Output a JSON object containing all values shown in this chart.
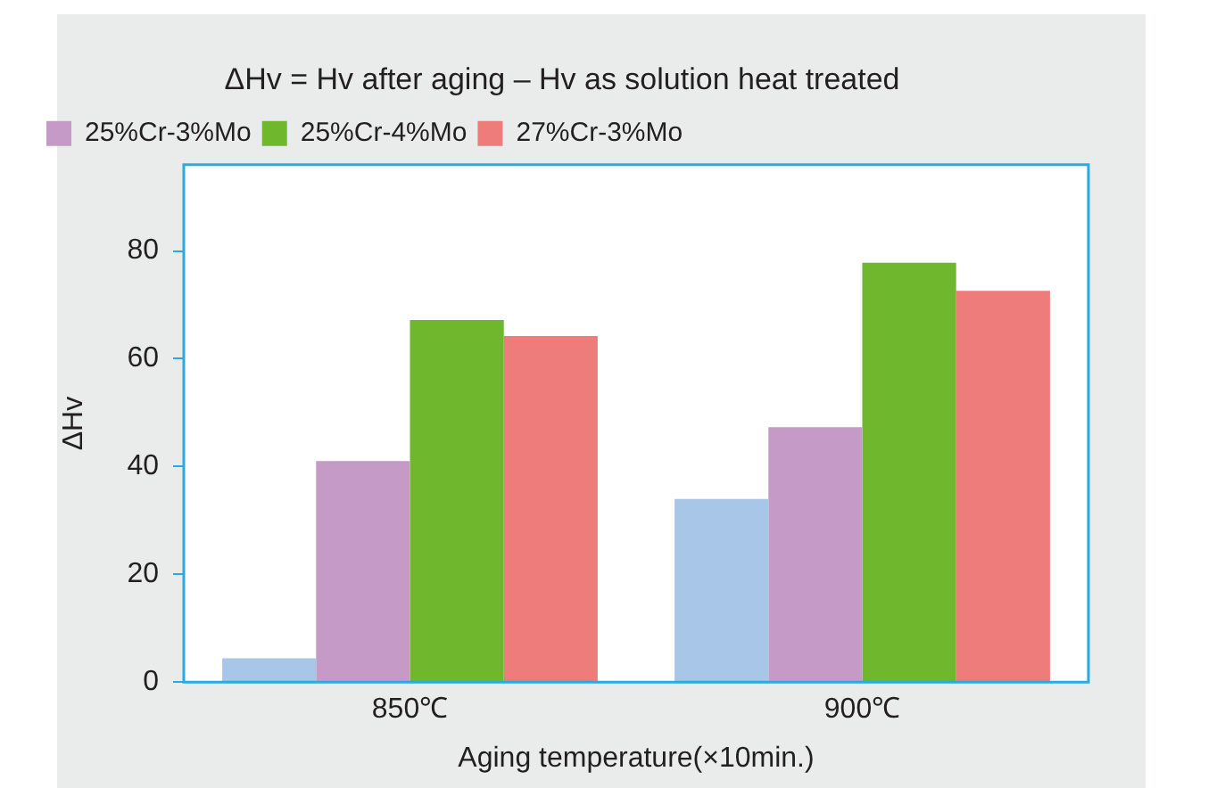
{
  "chart_data": {
    "type": "bar",
    "title": "ΔHv = Hv after aging – Hv as solution heat treated",
    "xlabel": "Aging temperature(×10min.)",
    "ylabel": "ΔHv",
    "categories": [
      "850℃",
      "900℃"
    ],
    "series": [
      {
        "color": "#a8c6e8",
        "values": [
          4.4,
          34
        ]
      },
      {
        "name": "25%Cr-3%Mo",
        "color": "#c59ac6",
        "values": [
          41,
          47.3
        ]
      },
      {
        "name": "25%Cr-4%Mo",
        "color": "#6fb82e",
        "values": [
          67.2,
          77.8
        ]
      },
      {
        "name": "27%Cr-3%Mo",
        "color": "#ed7c7a",
        "values": [
          64.2,
          72.6
        ]
      }
    ],
    "ylim": [
      0,
      96
    ],
    "yticks": [
      0,
      20,
      40,
      60,
      80
    ],
    "grid": false,
    "legend": "top left"
  }
}
